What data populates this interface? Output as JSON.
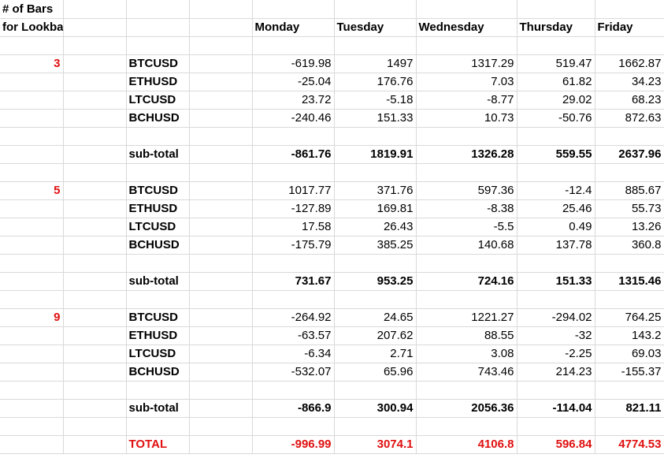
{
  "header": {
    "line1": "# of Bars",
    "line2": "for Lookback",
    "days": [
      "Monday",
      "Tuesday",
      "Wednesday",
      "Thursday",
      "Friday"
    ]
  },
  "blocks": [
    {
      "lookback": "3",
      "rows": [
        {
          "symbol": "BTCUSD",
          "values": [
            "-619.98",
            "1497",
            "1317.29",
            "519.47",
            "1662.87"
          ]
        },
        {
          "symbol": "ETHUSD",
          "values": [
            "-25.04",
            "176.76",
            "7.03",
            "61.82",
            "34.23"
          ]
        },
        {
          "symbol": "LTCUSD",
          "values": [
            "23.72",
            "-5.18",
            "-8.77",
            "29.02",
            "68.23"
          ]
        },
        {
          "symbol": "BCHUSD",
          "values": [
            "-240.46",
            "151.33",
            "10.73",
            "-50.76",
            "872.63"
          ]
        }
      ],
      "subtotal_label": "sub-total",
      "subtotal": [
        "-861.76",
        "1819.91",
        "1326.28",
        "559.55",
        "2637.96"
      ]
    },
    {
      "lookback": "5",
      "rows": [
        {
          "symbol": "BTCUSD",
          "values": [
            "1017.77",
            "371.76",
            "597.36",
            "-12.4",
            "885.67"
          ]
        },
        {
          "symbol": "ETHUSD",
          "values": [
            "-127.89",
            "169.81",
            "-8.38",
            "25.46",
            "55.73"
          ]
        },
        {
          "symbol": "LTCUSD",
          "values": [
            "17.58",
            "26.43",
            "-5.5",
            "0.49",
            "13.26"
          ]
        },
        {
          "symbol": "BCHUSD",
          "values": [
            "-175.79",
            "385.25",
            "140.68",
            "137.78",
            "360.8"
          ]
        }
      ],
      "subtotal_label": "sub-total",
      "subtotal": [
        "731.67",
        "953.25",
        "724.16",
        "151.33",
        "1315.46"
      ]
    },
    {
      "lookback": "9",
      "rows": [
        {
          "symbol": "BTCUSD",
          "values": [
            "-264.92",
            "24.65",
            "1221.27",
            "-294.02",
            "764.25"
          ]
        },
        {
          "symbol": "ETHUSD",
          "values": [
            "-63.57",
            "207.62",
            "88.55",
            "-32",
            "143.2"
          ]
        },
        {
          "symbol": "LTCUSD",
          "values": [
            "-6.34",
            "2.71",
            "3.08",
            "-2.25",
            "69.03"
          ]
        },
        {
          "symbol": "BCHUSD",
          "values": [
            "-532.07",
            "65.96",
            "743.46",
            "214.23",
            "-155.37"
          ]
        }
      ],
      "subtotal_label": "sub-total",
      "subtotal": [
        "-866.9",
        "300.94",
        "2056.36",
        "-114.04",
        "821.11"
      ]
    }
  ],
  "total": {
    "label": "TOTAL",
    "values": [
      "-996.99",
      "3074.1",
      "4106.8",
      "596.84",
      "4774.53"
    ]
  },
  "colors": {
    "accent_red": "#e01010",
    "gridline": "#d9d9d9"
  }
}
